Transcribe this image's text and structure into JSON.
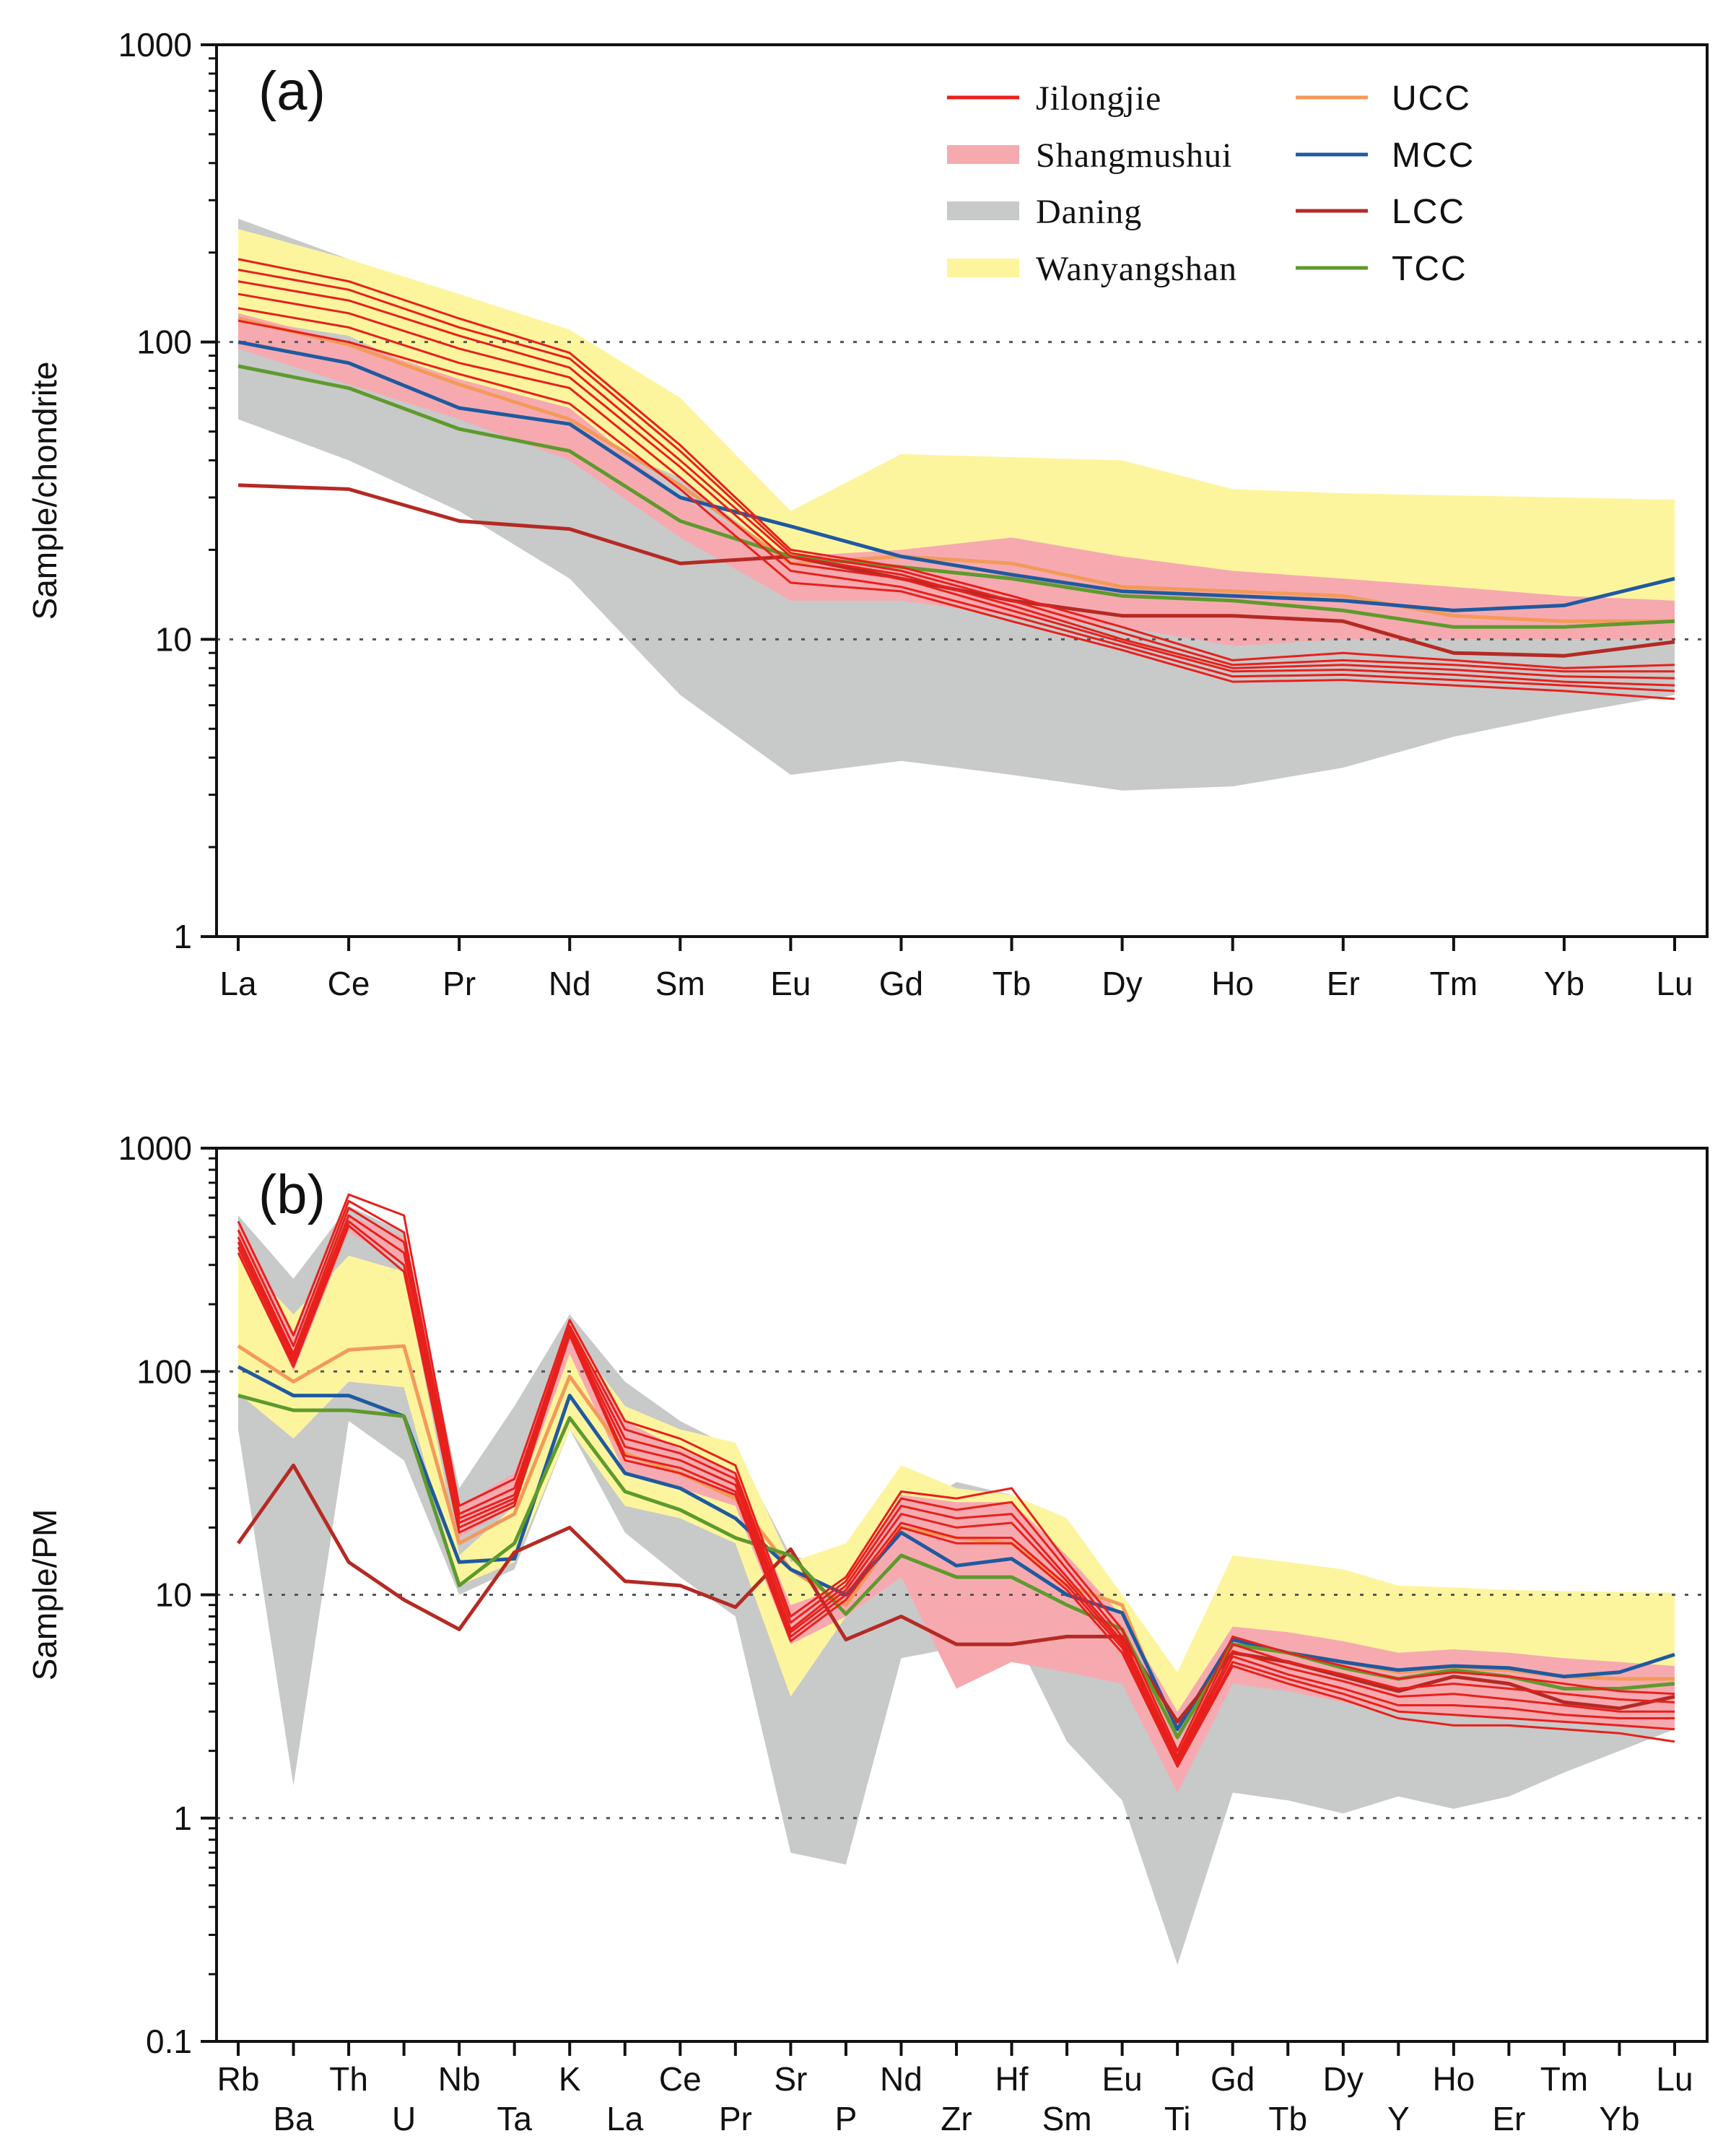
{
  "chart_data": [
    {
      "panel_label": "(a)",
      "type": "line",
      "scale": "log",
      "ylabel": "Sample/chondrite",
      "ylim": [
        1,
        1000
      ],
      "yticks": [
        "1",
        "10",
        "100",
        "1000"
      ],
      "gridlines": [
        10,
        100
      ],
      "categories": [
        "La",
        "Ce",
        "Pr",
        "Nd",
        "Sm",
        "Eu",
        "Gd",
        "Tb",
        "Dy",
        "Ho",
        "Er",
        "Tm",
        "Yb",
        "Lu"
      ],
      "legend": {
        "position": "top-right",
        "entries": [
          {
            "label": "Jilongjie",
            "color": "#e8201c",
            "kind": "line"
          },
          {
            "label": "Shangmushui",
            "color": "#f6aab0",
            "kind": "band"
          },
          {
            "label": "Daning",
            "color": "#c8c9c9",
            "kind": "band"
          },
          {
            "label": "Wanyangshan",
            "color": "#fdf59e",
            "kind": "band"
          },
          {
            "label": "UCC",
            "color": "#f39a5a",
            "kind": "line"
          },
          {
            "label": "MCC",
            "color": "#1f5aa0",
            "kind": "line"
          },
          {
            "label": "LCC",
            "color": "#b52a24",
            "kind": "line"
          },
          {
            "label": "TCC",
            "color": "#5e9a2e",
            "kind": "line"
          }
        ]
      },
      "bands": [
        {
          "name": "Daning",
          "color": "#c8c9c9",
          "upper": [
            260,
            190,
            120,
            80,
            40,
            21,
            25,
            23,
            21,
            18,
            16,
            14,
            13,
            12
          ],
          "lower": [
            55,
            40,
            27,
            16,
            6.5,
            3.5,
            3.9,
            3.5,
            3.1,
            3.2,
            3.7,
            4.7,
            5.6,
            6.5
          ]
        },
        {
          "name": "Wanyangshan",
          "color": "#fdf59e",
          "upper": [
            240,
            190,
            145,
            110,
            65,
            27,
            42,
            41,
            40,
            32,
            31,
            30.5,
            30,
            29.5
          ],
          "lower": [
            120,
            105,
            70,
            50,
            35,
            18,
            20,
            19,
            16,
            15,
            14,
            13,
            12.5,
            12.5
          ]
        },
        {
          "name": "Shangmushui",
          "color": "#f6aab0",
          "upper": [
            125,
            100,
            75,
            60,
            30,
            19,
            20,
            22,
            19,
            17,
            16,
            15,
            14,
            13.5
          ],
          "lower": [
            95,
            72,
            55,
            40,
            22,
            13.5,
            13.5,
            12,
            11,
            9.5,
            10,
            10,
            10,
            10
          ]
        }
      ],
      "series": [
        {
          "name": "UCC",
          "color": "#f39a5a",
          "values": [
            120,
            98,
            72,
            55,
            33,
            18,
            19,
            18,
            15,
            14.5,
            14,
            12,
            11.5,
            11.5
          ]
        },
        {
          "name": "MCC",
          "color": "#1f5aa0",
          "values": [
            100,
            85,
            60,
            53,
            30,
            24,
            19,
            16.5,
            14.5,
            14,
            13.5,
            12.5,
            13,
            16
          ]
        },
        {
          "name": "LCC",
          "color": "#b52a24",
          "values": [
            33,
            32,
            25,
            23.5,
            18,
            19,
            16,
            13.5,
            12,
            12,
            11.5,
            9,
            8.8,
            9.8
          ]
        },
        {
          "name": "TCC",
          "color": "#5e9a2e",
          "values": [
            83,
            70,
            51,
            43,
            25,
            19,
            17.5,
            16,
            14,
            13.5,
            12.5,
            11,
            11,
            11.5
          ]
        },
        {
          "name": "Jilongjie-1",
          "color": "#e8201c",
          "values": [
            190,
            160,
            120,
            92,
            45,
            20,
            17.5,
            14,
            11,
            8.5,
            9,
            8.5,
            8,
            8.2
          ]
        },
        {
          "name": "Jilongjie-2",
          "color": "#e8201c",
          "values": [
            175,
            150,
            112,
            88,
            43,
            19.5,
            17,
            13.5,
            10.5,
            8.2,
            8.5,
            8.2,
            7.8,
            7.8
          ]
        },
        {
          "name": "Jilongjie-3",
          "color": "#e8201c",
          "values": [
            160,
            138,
            105,
            82,
            40,
            19,
            16.5,
            13,
            10,
            8,
            8.2,
            7.9,
            7.5,
            7.4
          ]
        },
        {
          "name": "Jilongjie-4",
          "color": "#e8201c",
          "values": [
            145,
            125,
            95,
            76,
            38,
            18,
            16,
            12.5,
            9.8,
            7.8,
            7.9,
            7.6,
            7.2,
            7
          ]
        },
        {
          "name": "Jilongjie-5",
          "color": "#e8201c",
          "values": [
            130,
            112,
            85,
            70,
            35,
            17,
            15,
            12,
            9.5,
            7.5,
            7.6,
            7.3,
            7,
            6.7
          ]
        },
        {
          "name": "Jilongjie-6",
          "color": "#e8201c",
          "values": [
            118,
            100,
            78,
            62,
            32,
            15.5,
            14.5,
            11.5,
            9.2,
            7.2,
            7.3,
            7,
            6.7,
            6.3
          ]
        }
      ]
    },
    {
      "panel_label": "(b)",
      "type": "line",
      "scale": "log",
      "ylabel": "Sample/PM",
      "ylim": [
        0.1,
        1000
      ],
      "yticks": [
        "0.1",
        "1",
        "10",
        "100",
        "1000"
      ],
      "gridlines": [
        1,
        10,
        100
      ],
      "categories": [
        "Rb",
        "Ba",
        "Th",
        "U",
        "Nb",
        "Ta",
        "K",
        "La",
        "Ce",
        "Pr",
        "Sr",
        "P",
        "Nd",
        "Zr",
        "Hf",
        "Sm",
        "Eu",
        "Ti",
        "Gd",
        "Tb",
        "Dy",
        "Y",
        "Ho",
        "Er",
        "Tm",
        "Yb",
        "Lu"
      ],
      "bands": [
        {
          "name": "Daning",
          "color": "#c8c9c9",
          "upper": [
            500,
            260,
            550,
            420,
            30,
            70,
            180,
            90,
            60,
            45,
            15,
            13,
            22,
            32,
            28,
            22,
            9,
            3.2,
            8,
            7.5,
            7,
            6,
            6,
            5.5,
            5,
            4.5,
            4.2
          ],
          "lower": [
            55,
            1.4,
            60,
            40,
            10,
            13,
            55,
            19,
            12,
            8,
            0.7,
            0.62,
            5.2,
            5.8,
            7,
            2.2,
            1.2,
            0.22,
            1.3,
            1.2,
            1.05,
            1.25,
            1.1,
            1.25,
            1.6,
            2,
            2.5
          ]
        },
        {
          "name": "Wanyangshan",
          "color": "#fdf59e",
          "upper": [
            330,
            180,
            330,
            280,
            15,
            25,
            150,
            70,
            55,
            48,
            14,
            17,
            38,
            30,
            28,
            22,
            10,
            4.5,
            15,
            14,
            13,
            11,
            10.8,
            10.5,
            10.4,
            10.3,
            10.2
          ],
          "lower": [
            80,
            50,
            90,
            85,
            11,
            14,
            55,
            25,
            22,
            17,
            3.5,
            8,
            12,
            13,
            14,
            8,
            5,
            1.5,
            5.5,
            4.5,
            4.3,
            4,
            4,
            4,
            3.8,
            3.7,
            3.6
          ]
        },
        {
          "name": "Shangmushui",
          "color": "#f6aab0",
          "upper": [
            450,
            150,
            500,
            400,
            25,
            35,
            160,
            60,
            45,
            35,
            9,
            11,
            28,
            26,
            26,
            15,
            8,
            3,
            7.2,
            6.8,
            6.2,
            5.5,
            5.7,
            5.5,
            5.2,
            5,
            4.8
          ],
          "lower": [
            350,
            100,
            420,
            300,
            18,
            25,
            120,
            35,
            30,
            25,
            6,
            8,
            12,
            3.8,
            5,
            4.5,
            4,
            1.3,
            4,
            3.7,
            3.3,
            3,
            2.9,
            2.8,
            2.7,
            2.6,
            2.5
          ]
        }
      ],
      "series": [
        {
          "name": "UCC",
          "color": "#f39a5a",
          "values": [
            130,
            90,
            125,
            130,
            17,
            23,
            95,
            43,
            35,
            27,
            13,
            9,
            20,
            18,
            17,
            11,
            9,
            2.3,
            6,
            5.5,
            5,
            4.5,
            4.7,
            4.6,
            4.3,
            4.2,
            4.2
          ]
        },
        {
          "name": "MCC",
          "color": "#1f5aa0",
          "values": [
            105,
            78,
            78,
            63,
            14,
            14.5,
            78,
            35,
            30,
            22,
            13,
            10,
            19,
            13.5,
            14.5,
            10,
            8.3,
            2.5,
            6.3,
            5.5,
            5,
            4.6,
            4.8,
            4.7,
            4.3,
            4.5,
            5.4
          ]
        },
        {
          "name": "LCC",
          "color": "#b52a24",
          "values": [
            17,
            38,
            14,
            9.5,
            7,
            15.5,
            20,
            11.5,
            11,
            8.8,
            16,
            6.3,
            8,
            6,
            6,
            6.5,
            6.5,
            2.7,
            5.5,
            5,
            4.3,
            3.7,
            4.3,
            4,
            3.3,
            3.1,
            3.5
          ]
        },
        {
          "name": "TCC",
          "color": "#5e9a2e",
          "values": [
            78,
            67,
            67,
            63,
            11,
            17,
            62,
            29,
            24,
            18,
            15,
            8.2,
            15,
            12,
            12,
            9,
            7,
            2.3,
            6,
            5.5,
            4.7,
            4.2,
            4.6,
            4.3,
            3.8,
            3.8,
            4
          ]
        },
        {
          "name": "Jilongjie-1",
          "color": "#e8201c",
          "values": [
            470,
            145,
            620,
            500,
            25,
            33,
            170,
            60,
            50,
            38,
            8,
            12,
            29,
            27,
            30,
            14,
            7,
            2,
            6.5,
            5.5,
            4.8,
            4.2,
            4.5,
            4.3,
            4,
            3.7,
            3.6
          ]
        },
        {
          "name": "Jilongjie-2",
          "color": "#e8201c",
          "values": [
            430,
            130,
            580,
            420,
            23,
            30,
            160,
            55,
            46,
            35,
            7.5,
            11.5,
            27,
            24,
            26,
            13,
            6.5,
            1.9,
            6,
            5,
            4.4,
            3.8,
            4,
            3.8,
            3.6,
            3.4,
            3.3
          ]
        },
        {
          "name": "Jilongjie-3",
          "color": "#e8201c",
          "values": [
            400,
            120,
            540,
            380,
            22,
            28,
            155,
            50,
            43,
            33,
            7,
            11,
            25,
            22,
            23,
            12,
            6.2,
            1.85,
            5.6,
            4.7,
            4.1,
            3.5,
            3.6,
            3.4,
            3.2,
            3,
            3
          ]
        },
        {
          "name": "Jilongjie-4",
          "color": "#e8201c",
          "values": [
            380,
            115,
            500,
            340,
            21,
            27,
            150,
            46,
            40,
            31,
            6.8,
            10.5,
            23,
            20,
            21,
            11.5,
            6,
            1.8,
            5.3,
            4.4,
            3.8,
            3.2,
            3.2,
            3.1,
            2.9,
            2.8,
            2.8
          ]
        },
        {
          "name": "Jilongjie-5",
          "color": "#e8201c",
          "values": [
            360,
            110,
            470,
            300,
            20,
            26,
            148,
            42,
            37,
            29,
            6.5,
            10,
            21,
            18,
            18,
            11,
            5.8,
            1.75,
            5,
            4.2,
            3.6,
            3,
            2.9,
            2.8,
            2.7,
            2.6,
            2.5
          ]
        },
        {
          "name": "Jilongjie-6",
          "color": "#e8201c",
          "values": [
            340,
            105,
            450,
            280,
            19,
            25,
            145,
            40,
            35,
            28,
            6.2,
            9.5,
            20,
            17,
            17,
            10.5,
            5.5,
            1.7,
            4.8,
            4,
            3.4,
            2.8,
            2.6,
            2.6,
            2.5,
            2.4,
            2.2
          ]
        }
      ]
    }
  ]
}
